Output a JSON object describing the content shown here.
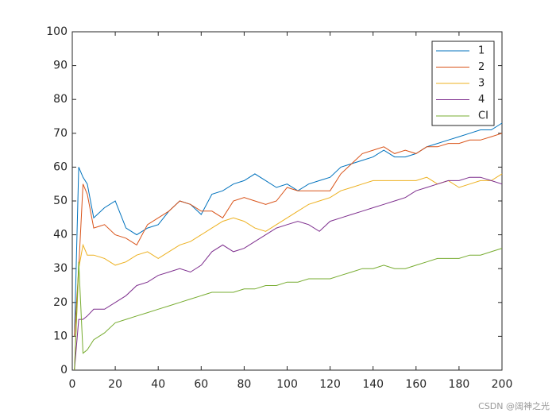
{
  "chart_data": {
    "type": "line",
    "x": [
      1,
      3,
      5,
      7,
      10,
      15,
      20,
      25,
      30,
      35,
      40,
      45,
      50,
      55,
      60,
      65,
      70,
      75,
      80,
      85,
      90,
      95,
      100,
      105,
      110,
      115,
      120,
      125,
      130,
      135,
      140,
      145,
      150,
      155,
      160,
      165,
      170,
      175,
      180,
      185,
      190,
      195,
      200
    ],
    "series": [
      {
        "name": "1",
        "color": "#0072BD",
        "values": [
          10,
          60,
          57,
          55,
          45,
          48,
          50,
          42,
          40,
          42,
          43,
          47,
          50,
          49,
          46,
          52,
          53,
          55,
          56,
          58,
          56,
          54,
          55,
          53,
          55,
          56,
          57,
          60,
          61,
          62,
          63,
          65,
          63,
          63,
          64,
          66,
          67,
          68,
          69,
          70,
          71,
          71,
          73
        ]
      },
      {
        "name": "2",
        "color": "#D95319",
        "values": [
          10,
          30,
          55,
          52,
          42,
          43,
          40,
          39,
          37,
          43,
          45,
          47,
          50,
          49,
          47,
          47,
          45,
          50,
          51,
          50,
          49,
          50,
          54,
          53,
          53,
          53,
          53,
          58,
          61,
          64,
          65,
          66,
          64,
          65,
          64,
          66,
          66,
          67,
          67,
          68,
          68,
          69,
          70
        ]
      },
      {
        "name": "3",
        "color": "#EDB120",
        "values": [
          0,
          30,
          37,
          34,
          34,
          33,
          31,
          32,
          34,
          35,
          33,
          35,
          37,
          38,
          40,
          42,
          44,
          45,
          44,
          42,
          41,
          43,
          45,
          47,
          49,
          50,
          51,
          53,
          54,
          55,
          56,
          56,
          56,
          56,
          56,
          57,
          55,
          56,
          54,
          55,
          56,
          56,
          58
        ]
      },
      {
        "name": "4",
        "color": "#7E2F8E",
        "values": [
          0,
          15,
          15,
          16,
          18,
          18,
          20,
          22,
          25,
          26,
          28,
          29,
          30,
          29,
          31,
          35,
          37,
          35,
          36,
          38,
          40,
          42,
          43,
          44,
          43,
          41,
          44,
          45,
          46,
          47,
          48,
          49,
          50,
          51,
          53,
          54,
          55,
          56,
          56,
          57,
          57,
          56,
          55
        ]
      },
      {
        "name": "CI",
        "color": "#77AC30",
        "values": [
          0,
          32,
          5,
          6,
          9,
          11,
          14,
          15,
          16,
          17,
          18,
          19,
          20,
          21,
          22,
          23,
          23,
          23,
          24,
          24,
          25,
          25,
          26,
          26,
          27,
          27,
          27,
          28,
          29,
          30,
          30,
          31,
          30,
          30,
          31,
          32,
          33,
          33,
          33,
          34,
          34,
          35,
          36
        ]
      }
    ],
    "xlim": [
      0,
      200
    ],
    "xticks": [
      0,
      20,
      40,
      60,
      80,
      100,
      120,
      140,
      160,
      180,
      200
    ],
    "ylim": [
      0,
      100
    ],
    "yticks": [
      0,
      10,
      20,
      30,
      40,
      50,
      60,
      70,
      80,
      90,
      100
    ],
    "grid": false,
    "legend": "northeast",
    "watermark": "CSDN @阔神之光"
  }
}
